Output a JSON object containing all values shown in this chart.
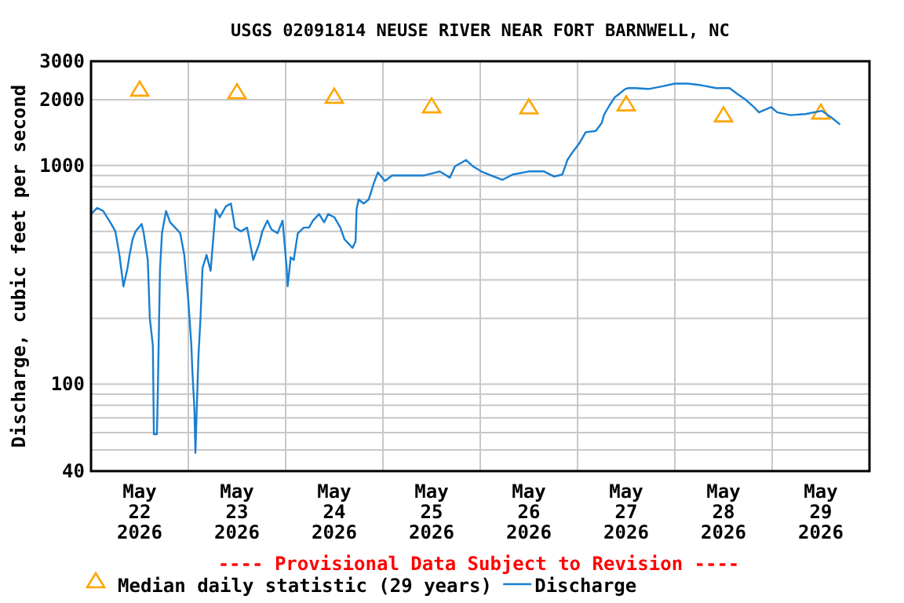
{
  "chart_data": {
    "type": "line",
    "title": "USGS 02091814 NEUSE RIVER NEAR FORT BARNWELL, NC",
    "ylabel": "Discharge, cubic feet per second",
    "annotations": [
      "---- Provisional Data Subject to Revision ----"
    ],
    "log": true,
    "grid": true,
    "legend": "bottom",
    "xlim": [
      "2026-05-22",
      "2026-05-30"
    ],
    "xticks": [
      {
        "value": "2026-05-22T12:00",
        "label": "May\n22\n2026"
      },
      {
        "value": "2026-05-23T12:00",
        "label": "May\n23\n2026"
      },
      {
        "value": "2026-05-24T12:00",
        "label": "May\n24\n2026"
      },
      {
        "value": "2026-05-25T12:00",
        "label": "May\n25\n2026"
      },
      {
        "value": "2026-05-26T12:00",
        "label": "May\n26\n2026"
      },
      {
        "value": "2026-05-27T12:00",
        "label": "May\n27\n2026"
      },
      {
        "value": "2026-05-28T12:00",
        "label": "May\n28\n2026"
      },
      {
        "value": "2026-05-29T12:00",
        "label": "May\n29\n2026"
      },
      {
        "value": "2026-05-23",
        "label": null
      },
      {
        "value": "2026-05-24",
        "label": null
      },
      {
        "value": "2026-05-25",
        "label": null
      },
      {
        "value": "2026-05-26",
        "label": null
      },
      {
        "value": "2026-05-27",
        "label": null
      },
      {
        "value": "2026-05-28",
        "label": null
      },
      {
        "value": "2026-05-29",
        "label": null
      }
    ],
    "ylim": [
      40,
      3000
    ],
    "yticks": [
      40,
      {
        "value": 50,
        "label": null
      },
      {
        "value": 60,
        "label": null
      },
      {
        "value": 70,
        "label": null
      },
      {
        "value": 80,
        "label": null
      },
      {
        "value": 90,
        "label": null
      },
      100,
      {
        "value": 200,
        "label": null
      },
      {
        "value": 300,
        "label": null
      },
      {
        "value": 400,
        "label": null
      },
      {
        "value": 500,
        "label": null
      },
      {
        "value": 600,
        "label": null
      },
      {
        "value": 700,
        "label": null
      },
      {
        "value": 800,
        "label": null
      },
      {
        "value": 900,
        "label": null
      },
      1000,
      2000,
      3000
    ],
    "series": [
      {
        "name": "Median daily statistic (29 years)",
        "type": "scatter",
        "marker": "triangle",
        "color": "#ffa500",
        "x": [
          "2026-05-22T12:00",
          "2026-05-23T12:00",
          "2026-05-24T12:00",
          "2026-05-25T12:00",
          "2026-05-26T12:00",
          "2026-05-27T12:00",
          "2026-05-28T12:00",
          "2026-05-29T12:00"
        ],
        "values": [
          2230,
          2170,
          2070,
          1870,
          1850,
          1910,
          1700,
          1750
        ]
      },
      {
        "name": "Discharge",
        "marker": "none",
        "color": "#1a7fd0",
        "x": [
          "2026-05-22T00:00",
          "2026-05-22T01:30",
          "2026-05-22T03:00",
          "2026-05-22T05:00",
          "2026-05-22T06:00",
          "2026-05-22T07:00",
          "2026-05-22T08:00",
          "2026-05-22T09:00",
          "2026-05-22T09:30",
          "2026-05-22T10:15",
          "2026-05-22T11:00",
          "2026-05-22T12:30",
          "2026-05-22T13:00",
          "2026-05-22T14:00",
          "2026-05-22T14:30",
          "2026-05-22T15:15",
          "2026-05-22T15:30",
          "2026-05-22T16:15",
          "2026-05-22T16:30",
          "2026-05-22T17:00",
          "2026-05-22T17:30",
          "2026-05-22T18:30",
          "2026-05-22T19:30",
          "2026-05-22T20:45",
          "2026-05-22T22:00",
          "2026-05-22T23:00",
          "2026-05-23T00:00",
          "2026-05-23T00:45",
          "2026-05-23T01:00",
          "2026-05-23T01:30",
          "2026-05-23T01:45",
          "2026-05-23T02:00",
          "2026-05-23T02:30",
          "2026-05-23T03:00",
          "2026-05-23T03:30",
          "2026-05-23T04:30",
          "2026-05-23T05:30",
          "2026-05-23T06:00",
          "2026-05-23T06:45",
          "2026-05-23T07:45",
          "2026-05-23T09:15",
          "2026-05-23T10:30",
          "2026-05-23T11:30",
          "2026-05-23T13:00",
          "2026-05-23T14:30",
          "2026-05-23T16:00",
          "2026-05-23T17:30",
          "2026-05-23T18:15",
          "2026-05-23T19:30",
          "2026-05-23T20:30",
          "2026-05-23T22:00",
          "2026-05-23T23:15",
          "2026-05-24T00:15",
          "2026-05-24T00:30",
          "2026-05-24T01:15",
          "2026-05-24T02:00",
          "2026-05-24T03:00",
          "2026-05-24T04:30",
          "2026-05-24T05:45",
          "2026-05-24T06:45",
          "2026-05-24T08:15",
          "2026-05-24T09:30",
          "2026-05-24T10:30",
          "2026-05-24T12:00",
          "2026-05-24T13:30",
          "2026-05-24T14:30",
          "2026-05-24T15:30",
          "2026-05-24T16:30",
          "2026-05-24T17:15",
          "2026-05-24T17:30",
          "2026-05-24T18:00",
          "2026-05-24T19:15",
          "2026-05-24T20:30",
          "2026-05-24T21:45",
          "2026-05-24T22:45",
          "2026-05-25T00:30",
          "2026-05-25T02:15",
          "2026-05-25T06:15",
          "2026-05-25T10:00",
          "2026-05-25T14:00",
          "2026-05-25T16:30",
          "2026-05-25T17:45",
          "2026-05-25T20:30",
          "2026-05-25T22:15",
          "2026-05-26T00:15",
          "2026-05-26T02:45",
          "2026-05-26T05:30",
          "2026-05-26T08:00",
          "2026-05-26T12:00",
          "2026-05-26T15:45",
          "2026-05-26T18:15",
          "2026-05-26T20:15",
          "2026-05-26T21:30",
          "2026-05-26T22:45",
          "2026-05-27T00:30",
          "2026-05-27T02:00",
          "2026-05-27T04:30",
          "2026-05-27T06:00",
          "2026-05-27T06:30",
          "2026-05-27T07:15",
          "2026-05-27T08:00",
          "2026-05-27T09:15",
          "2026-05-27T09:45",
          "2026-05-27T11:45",
          "2026-05-27T12:30",
          "2026-05-27T14:15",
          "2026-05-27T17:30",
          "2026-05-27T20:45",
          "2026-05-28T00:00",
          "2026-05-28T03:15",
          "2026-05-28T06:30",
          "2026-05-28T10:15",
          "2026-05-28T13:30",
          "2026-05-28T15:30",
          "2026-05-28T17:30",
          "2026-05-28T19:30",
          "2026-05-28T20:45",
          "2026-05-28T23:45",
          "2026-05-29T01:15",
          "2026-05-29T04:30",
          "2026-05-29T08:15",
          "2026-05-29T12:15",
          "2026-05-29T14:45",
          "2026-05-29T16:45"
        ],
        "values": [
          600,
          640,
          620,
          540,
          500,
          390,
          280,
          340,
          390,
          460,
          500,
          540,
          490,
          370,
          200,
          150,
          59,
          59,
          97,
          330,
          490,
          620,
          550,
          520,
          490,
          390,
          240,
          150,
          114,
          77,
          48.5,
          69,
          135,
          200,
          340,
          390,
          330,
          430,
          630,
          580,
          650,
          670,
          520,
          500,
          520,
          370,
          440,
          500,
          560,
          510,
          490,
          560,
          340,
          280,
          380,
          370,
          490,
          520,
          520,
          560,
          600,
          550,
          600,
          580,
          520,
          460,
          440,
          420,
          450,
          630,
          700,
          670,
          700,
          830,
          930,
          850,
          900,
          900,
          900,
          940,
          880,
          990,
          1060,
          990,
          940,
          900,
          860,
          910,
          940,
          940,
          890,
          910,
          1060,
          1150,
          1270,
          1420,
          1440,
          1570,
          1700,
          1800,
          1900,
          2060,
          2090,
          2240,
          2260,
          2260,
          2240,
          2300,
          2370,
          2370,
          2330,
          2260,
          2260,
          2120,
          2000,
          1850,
          1750,
          1850,
          1750,
          1700,
          1720,
          1780,
          1650,
          1540
        ]
      }
    ]
  }
}
